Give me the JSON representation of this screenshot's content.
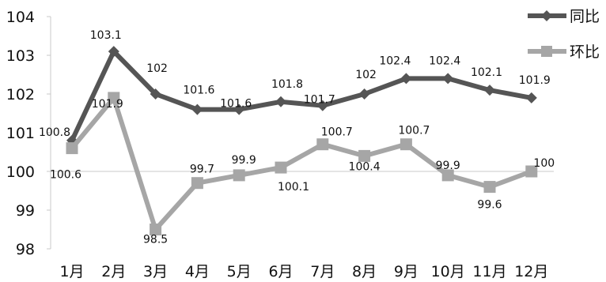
{
  "chart_data": {
    "type": "line",
    "categories": [
      "1月",
      "2月",
      "3月",
      "4月",
      "5月",
      "6月",
      "7月",
      "8月",
      "9月",
      "10月",
      "11月",
      "12月"
    ],
    "ylim": [
      98,
      104
    ],
    "yticks": [
      98,
      99,
      100,
      101,
      102,
      103,
      104
    ],
    "grid": false,
    "legend_position": "top-right",
    "series": [
      {
        "name": "同比",
        "color": "#555555",
        "marker": "diamond",
        "values": [
          100.8,
          103.1,
          102,
          101.6,
          101.6,
          101.8,
          101.7,
          102,
          102.4,
          102.4,
          102.1,
          101.9
        ],
        "labels": [
          "100.8",
          "103.1",
          "102",
          "101.6",
          "101.6",
          "101.8",
          "101.7",
          "102",
          "102.4",
          "102.4",
          "102.1",
          "101.9"
        ]
      },
      {
        "name": "环比",
        "color": "#a6a6a6",
        "marker": "square",
        "values": [
          100.6,
          101.9,
          98.5,
          99.7,
          99.9,
          100.1,
          100.7,
          100.4,
          100.7,
          99.9,
          99.6,
          100
        ],
        "labels": [
          "100.6",
          "101.9",
          "98.5",
          "99.7",
          "99.9",
          "100.1",
          "100.7",
          "100.4",
          "100.7",
          "99.9",
          "99.6",
          "100"
        ]
      }
    ]
  }
}
